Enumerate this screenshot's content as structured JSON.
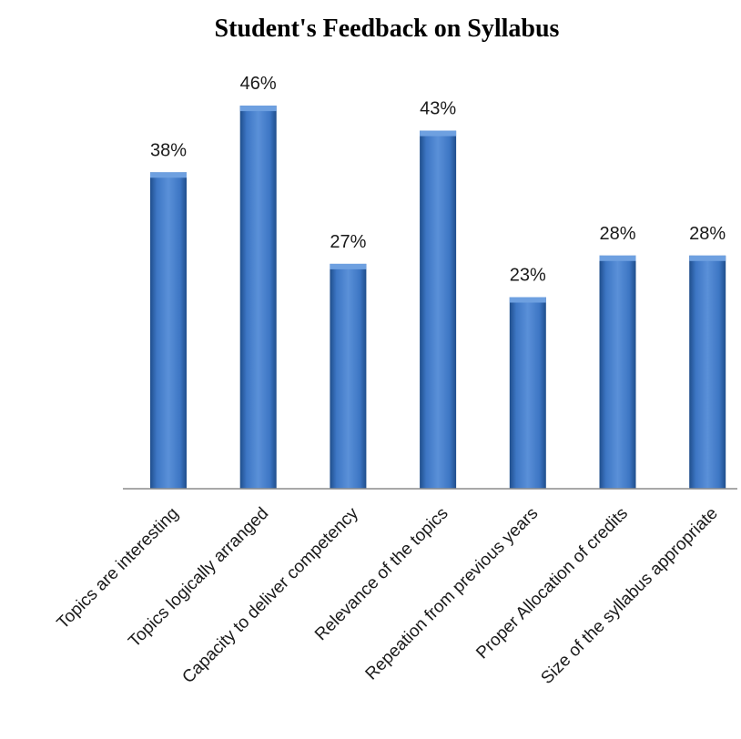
{
  "chart_data": {
    "type": "bar",
    "title": "Student's Feedback on Syllabus",
    "xlabel": "",
    "ylabel": "",
    "categories": [
      "Topics are interesting",
      "Topics logically arranged",
      "Capacity to deliver competency",
      "Relevance of the topics",
      "Repeation from previous years",
      "Proper Allocation of credits",
      "Size  of the syllabus appropriate"
    ],
    "values": [
      38,
      46,
      27,
      43,
      23,
      28,
      28
    ],
    "value_labels": [
      "38%",
      "46%",
      "27%",
      "43%",
      "23%",
      "28%",
      "28%"
    ],
    "unit": "%",
    "ylim": [
      0,
      50
    ],
    "grid": false,
    "legend": "none",
    "colors": {
      "bar": "#3d76c4",
      "bar_dark": "#1f4e8c",
      "bar_light": "#6ea0e0",
      "axis": "#8c8c8c"
    }
  }
}
